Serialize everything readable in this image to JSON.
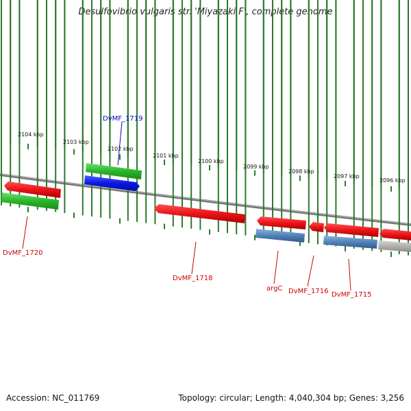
{
  "title": "Desulfovibrio vulgaris str. 'Miyazaki F', complete genome",
  "footer": {
    "accession": "Accession: NC_011769",
    "topology": "Topology: circular; Length: 4,040,304 bp; Genes: 3,256"
  },
  "colors": {
    "forward_cds": "#e8141a",
    "reverse_cds": "#2ab52a",
    "blue_cds": "#0a18e6",
    "rna": "#4f82b8",
    "other": "#b0b0b0",
    "backbone": "#7a7a7a",
    "tick": "#2a7a2a",
    "label_red": "#cc0000",
    "label_blue": "#0000cc"
  },
  "kbp_labels": [
    "2104 kbp",
    "2103 kbp",
    "2102 kbp",
    "2101 kbp",
    "2100 kbp",
    "2099 kbp",
    "2098 kbp",
    "2097 kbp",
    "2096 kbp"
  ],
  "gene_labels": [
    {
      "id": "DvMF_1719",
      "color": "blue"
    },
    {
      "id": "DvMF_1720",
      "color": "red"
    },
    {
      "id": "DvMF_1718",
      "color": "red"
    },
    {
      "id": "argC",
      "color": "red"
    },
    {
      "id": "DvMF_1716",
      "color": "red"
    },
    {
      "id": "DvMF_1715",
      "color": "red"
    }
  ]
}
